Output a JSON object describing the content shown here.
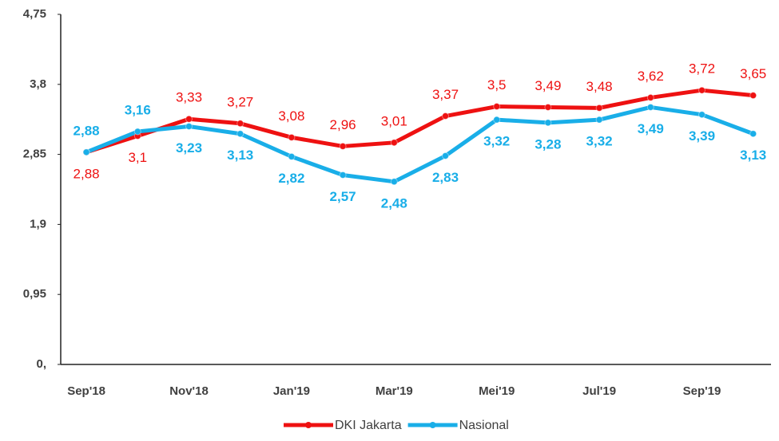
{
  "chart_data": {
    "type": "line",
    "categories": [
      "Sep'18",
      null,
      "Nov'18",
      null,
      "Jan'19",
      null,
      "Mar'19",
      null,
      "Mei'19",
      null,
      "Jul'19",
      null,
      "Sep'19",
      null
    ],
    "series": [
      {
        "name": "DKI Jakarta",
        "color": "#ee1111",
        "values": [
          2.88,
          3.1,
          3.33,
          3.27,
          3.08,
          2.96,
          3.01,
          3.37,
          3.5,
          3.49,
          3.48,
          3.62,
          3.72,
          3.65
        ],
        "value_labels": [
          "2,88",
          "3,1",
          "3,33",
          "3,27",
          "3,08",
          "2,96",
          "3,01",
          "3,37",
          "3,5",
          "3,49",
          "3,48",
          "3,62",
          "3,72",
          "3,65"
        ]
      },
      {
        "name": "Nasional",
        "color": "#19aee8",
        "values": [
          2.88,
          3.16,
          3.23,
          3.13,
          2.82,
          2.57,
          2.48,
          2.83,
          3.32,
          3.28,
          3.32,
          3.49,
          3.39,
          3.13
        ],
        "value_labels": [
          "2,88",
          "3,16",
          "3,23",
          "3,13",
          "2,82",
          "2,57",
          "2,48",
          "2,83",
          "3,32",
          "3,28",
          "3,32",
          "3,49",
          "3,39",
          "3,13"
        ]
      }
    ],
    "ylim": [
      0,
      4.75
    ],
    "yticks": [
      {
        "value": 0,
        "label": "0,"
      },
      {
        "value": 0.95,
        "label": "0,95"
      },
      {
        "value": 1.9,
        "label": "1,9"
      },
      {
        "value": 2.85,
        "label": "2,85"
      },
      {
        "value": 3.8,
        "label": "3,8"
      },
      {
        "value": 4.75,
        "label": "4,75"
      }
    ],
    "legend": "bottom"
  }
}
